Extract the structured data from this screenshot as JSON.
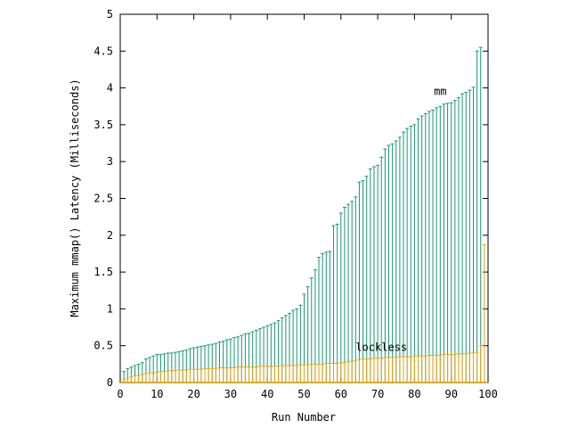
{
  "chart_data": {
    "type": "line",
    "title": "",
    "xlabel": "Run Number",
    "ylabel": "Maximum mmap() Latency (Milliseconds)",
    "xlim": [
      0,
      100
    ],
    "ylim": [
      0,
      5
    ],
    "xticks": [
      0,
      10,
      20,
      30,
      40,
      50,
      60,
      70,
      80,
      90,
      100
    ],
    "yticks": [
      "0",
      "0.5",
      "1",
      "1.5",
      "2",
      "2.5",
      "3",
      "3.5",
      "4",
      "4.5",
      "5"
    ],
    "grid": false,
    "legend": "none",
    "series": [
      {
        "name": "mm",
        "color": "#1a9673",
        "min": 0.0,
        "values": [
          0.15,
          0.19,
          0.21,
          0.23,
          0.25,
          0.27,
          0.32,
          0.34,
          0.36,
          0.38,
          0.38,
          0.39,
          0.4,
          0.4,
          0.41,
          0.42,
          0.43,
          0.44,
          0.46,
          0.47,
          0.48,
          0.49,
          0.5,
          0.51,
          0.52,
          0.53,
          0.55,
          0.56,
          0.58,
          0.59,
          0.61,
          0.62,
          0.64,
          0.66,
          0.67,
          0.69,
          0.71,
          0.73,
          0.75,
          0.77,
          0.79,
          0.81,
          0.84,
          0.88,
          0.91,
          0.94,
          0.98,
          1.0,
          1.05,
          1.2,
          1.3,
          1.42,
          1.53,
          1.7,
          1.75,
          1.77,
          1.78,
          2.13,
          2.15,
          2.3,
          2.38,
          2.42,
          2.46,
          2.52,
          2.72,
          2.74,
          2.8,
          2.9,
          2.93,
          2.95,
          3.06,
          3.17,
          3.22,
          3.24,
          3.28,
          3.33,
          3.4,
          3.45,
          3.48,
          3.5,
          3.58,
          3.62,
          3.65,
          3.68,
          3.7,
          3.73,
          3.75,
          3.78,
          3.79,
          3.8,
          3.83,
          3.87,
          3.92,
          3.94,
          3.97,
          4.01,
          4.5,
          4.55
        ]
      },
      {
        "name": "lockless",
        "color": "#e8a317",
        "min": 0.0,
        "values": [
          0.04,
          0.06,
          0.08,
          0.09,
          0.1,
          0.11,
          0.12,
          0.13,
          0.13,
          0.14,
          0.15,
          0.15,
          0.16,
          0.16,
          0.16,
          0.17,
          0.17,
          0.17,
          0.18,
          0.18,
          0.18,
          0.18,
          0.19,
          0.19,
          0.19,
          0.19,
          0.2,
          0.2,
          0.2,
          0.2,
          0.2,
          0.21,
          0.21,
          0.21,
          0.21,
          0.21,
          0.21,
          0.22,
          0.22,
          0.22,
          0.22,
          0.22,
          0.22,
          0.23,
          0.23,
          0.23,
          0.23,
          0.23,
          0.24,
          0.24,
          0.24,
          0.25,
          0.25,
          0.25,
          0.25,
          0.26,
          0.26,
          0.26,
          0.26,
          0.27,
          0.27,
          0.28,
          0.29,
          0.3,
          0.31,
          0.32,
          0.32,
          0.32,
          0.33,
          0.33,
          0.33,
          0.34,
          0.34,
          0.34,
          0.34,
          0.35,
          0.35,
          0.35,
          0.35,
          0.36,
          0.36,
          0.36,
          0.36,
          0.37,
          0.37,
          0.37,
          0.37,
          0.38,
          0.38,
          0.38,
          0.38,
          0.39,
          0.39,
          0.39,
          0.4,
          0.4,
          0.41,
          0.5,
          1.87
        ]
      }
    ],
    "annotations": [
      {
        "text": "mm",
        "x": 87,
        "y": 3.95
      },
      {
        "text": "lockless",
        "x": 71,
        "y": 0.48
      }
    ]
  }
}
